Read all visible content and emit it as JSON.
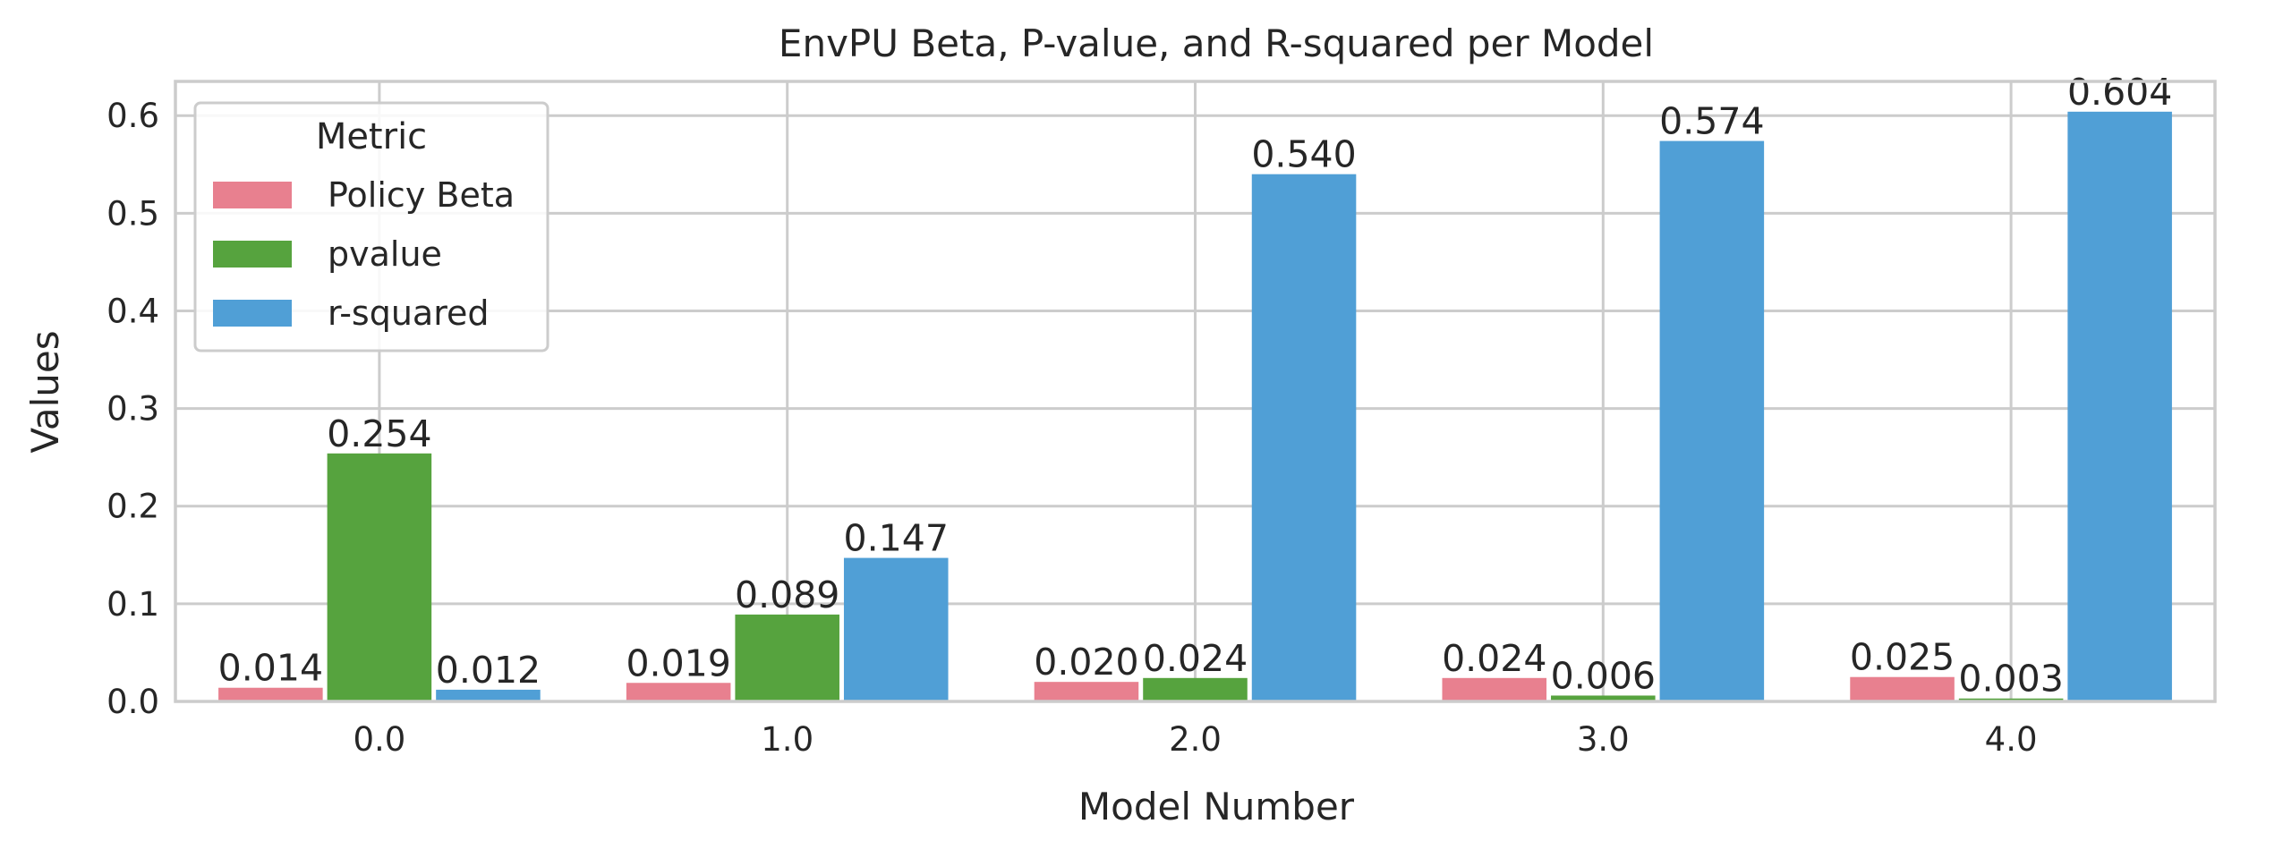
{
  "chart_data": {
    "type": "bar",
    "title": "EnvPU Beta, P-value, and R-squared per Model",
    "xlabel": "Model Number",
    "ylabel": "Values",
    "categories": [
      "0.0",
      "1.0",
      "2.0",
      "3.0",
      "4.0"
    ],
    "ylim": [
      0,
      0.635
    ],
    "yticks": [
      "0.0",
      "0.1",
      "0.2",
      "0.3",
      "0.4",
      "0.5",
      "0.6"
    ],
    "yticks_values": [
      0,
      0.1,
      0.2,
      0.3,
      0.4,
      0.5,
      0.6
    ],
    "grid": true,
    "legend": {
      "title": "Metric",
      "position": "top-left"
    },
    "series": [
      {
        "name": "Policy Beta",
        "color": "#e8808f",
        "values": [
          0.014,
          0.019,
          0.02,
          0.024,
          0.025
        ],
        "labels": [
          "0.014",
          "0.019",
          "0.020",
          "0.024",
          "0.025"
        ]
      },
      {
        "name": "pvalue",
        "color": "#56a33e",
        "values": [
          0.254,
          0.089,
          0.024,
          0.006,
          0.003
        ],
        "labels": [
          "0.254",
          "0.089",
          "0.024",
          "0.006",
          "0.003"
        ]
      },
      {
        "name": "r-squared",
        "color": "#509fd6",
        "values": [
          0.012,
          0.147,
          0.54,
          0.574,
          0.604
        ],
        "labels": [
          "0.012",
          "0.147",
          "0.540",
          "0.574",
          "0.604"
        ]
      }
    ]
  }
}
